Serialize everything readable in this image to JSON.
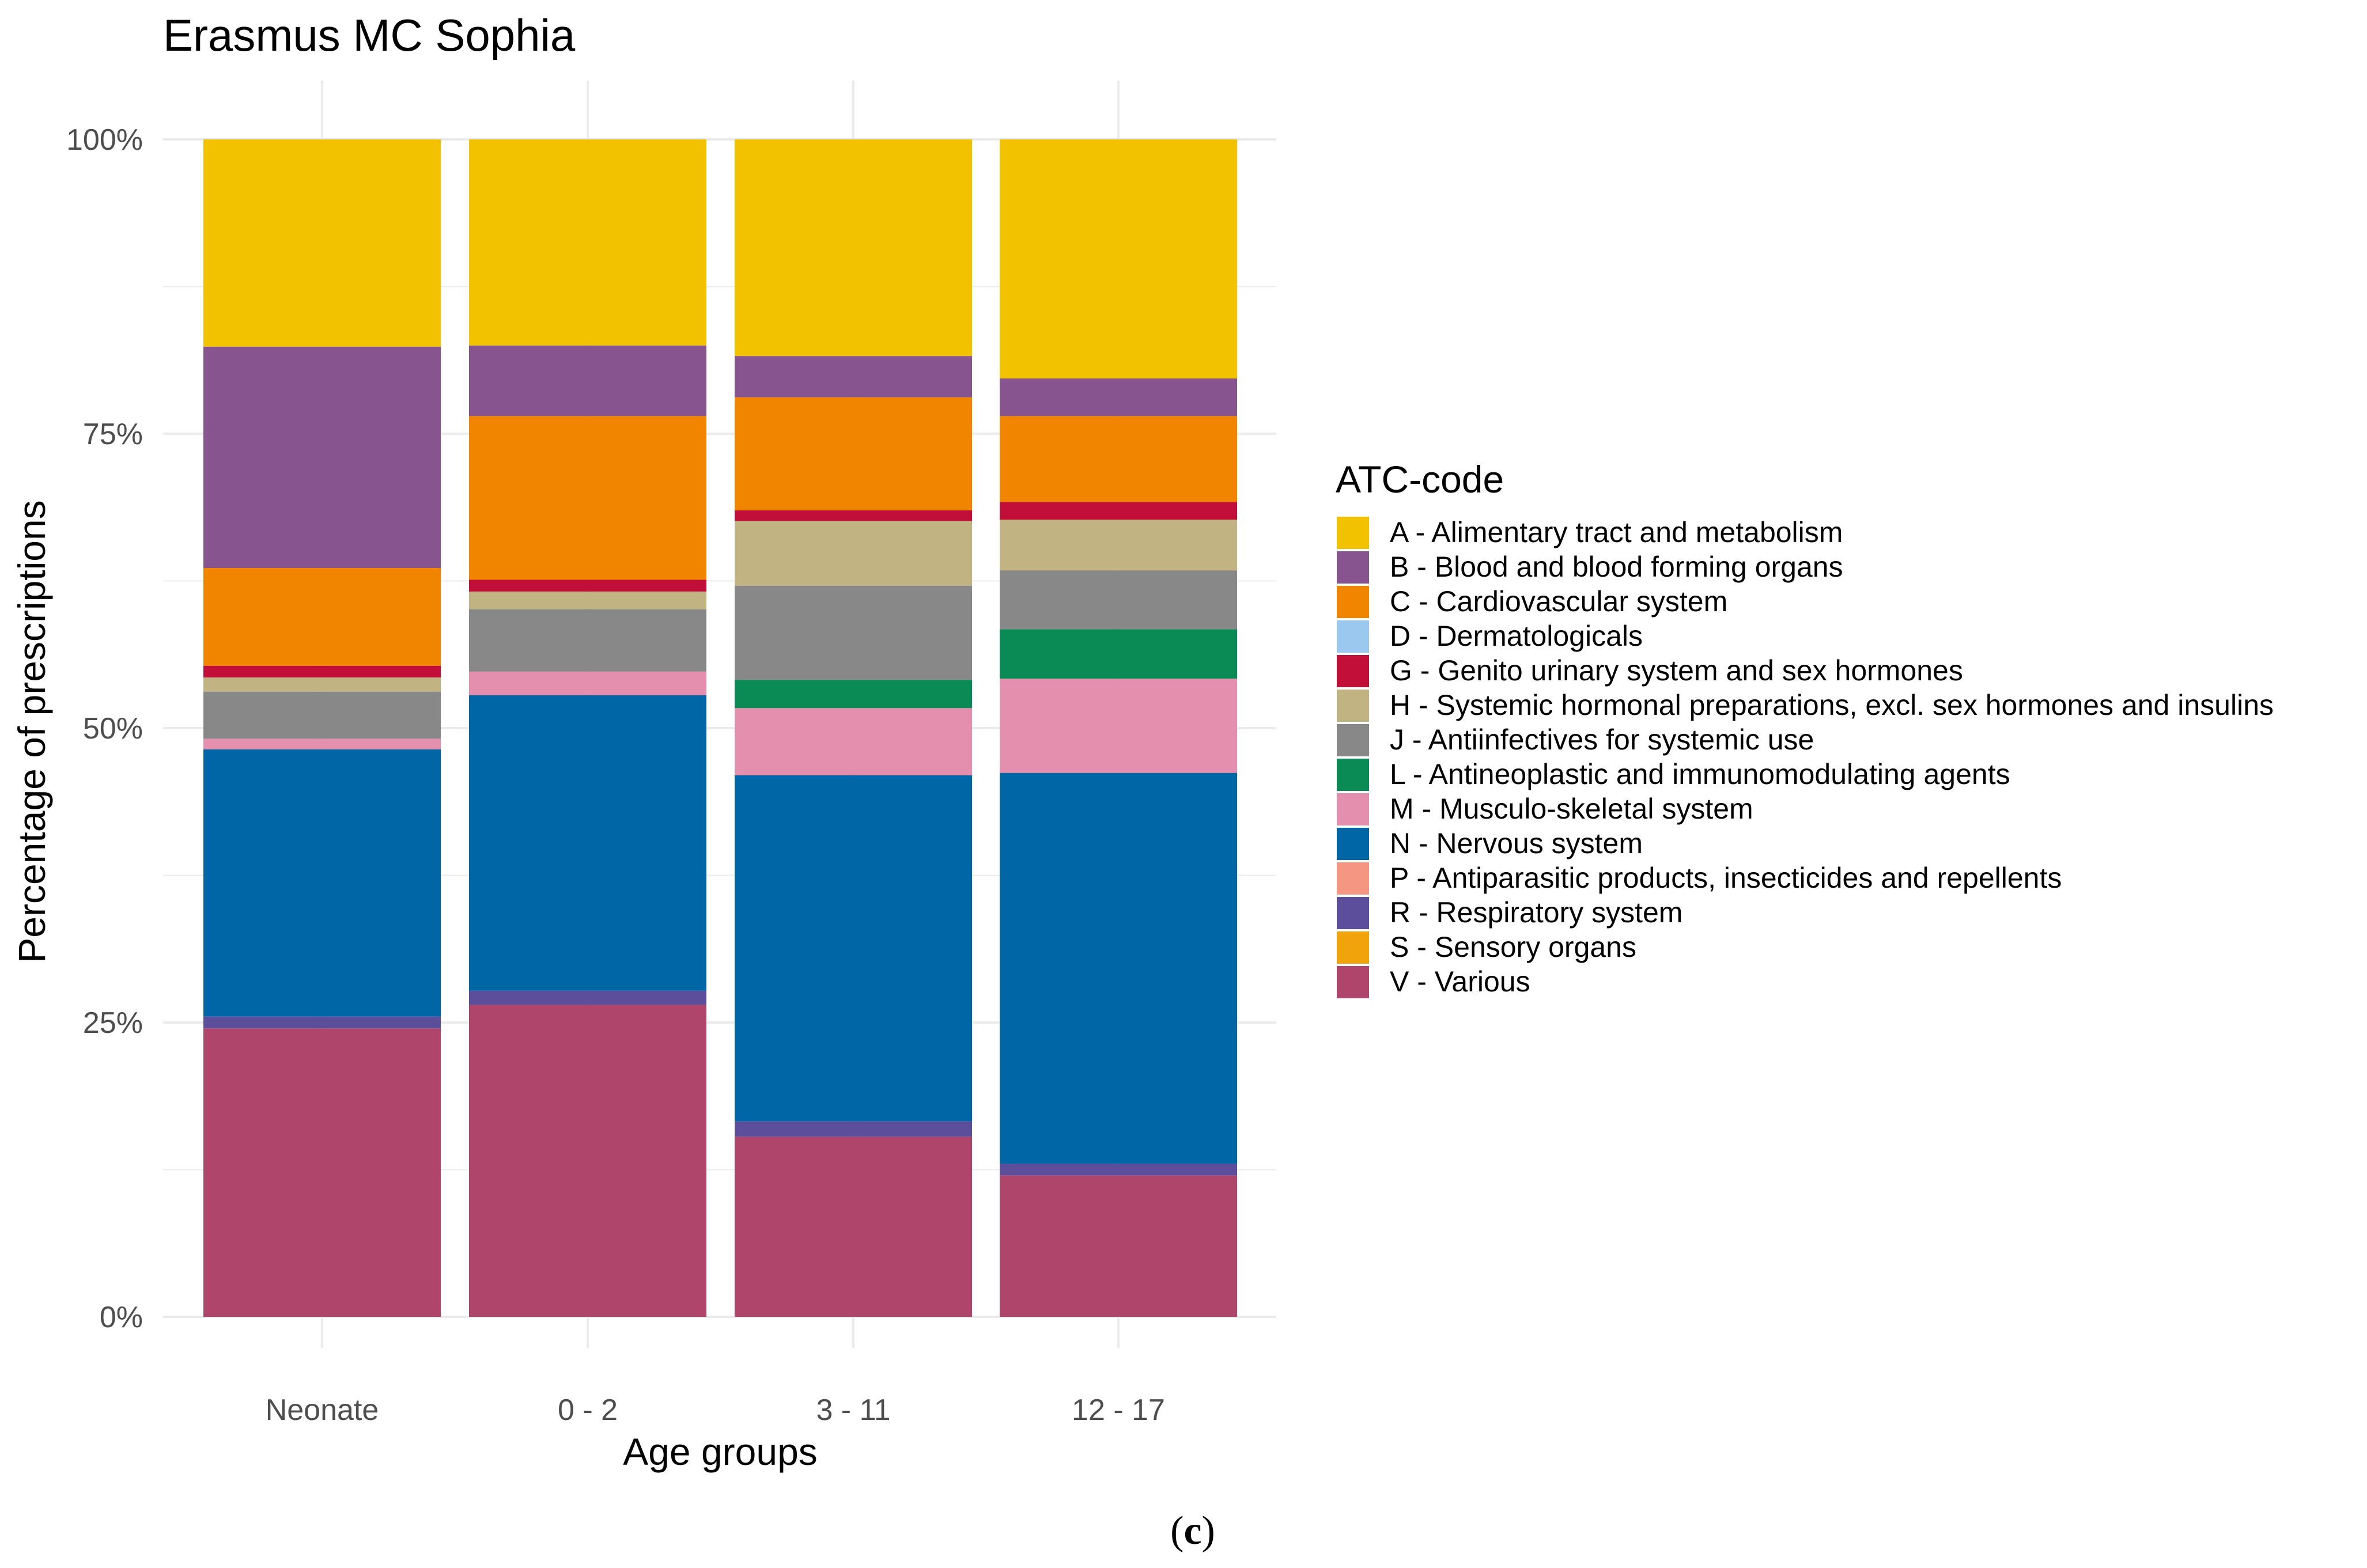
{
  "chart_data": {
    "type": "bar",
    "stacked": true,
    "title": "Erasmus MC Sophia",
    "xlabel": "Age groups",
    "ylabel": "Percentage of prescriptions",
    "ylim": [
      0,
      100
    ],
    "yticks": [
      "0%",
      "25%",
      "50%",
      "75%",
      "100%"
    ],
    "categories": [
      "Neonate",
      "0 - 2",
      "3 - 11",
      "12 - 17"
    ],
    "legend_title": "ATC-code",
    "legend_position": "right",
    "grid": true,
    "series": [
      {
        "name": "V - Various",
        "color": "#b0456b",
        "values": [
          24.5,
          26.5,
          15.3,
          12.0
        ]
      },
      {
        "name": "S - Sensory organs",
        "color": "#f0a30a",
        "values": [
          0.0,
          0.0,
          0.0,
          0.0
        ]
      },
      {
        "name": "R - Respiratory system",
        "color": "#5d4e9c",
        "values": [
          1.0,
          1.2,
          1.3,
          1.0
        ]
      },
      {
        "name": "P - Antiparasitic products, insecticides and repellents",
        "color": "#f49682",
        "values": [
          0.0,
          0.0,
          0.0,
          0.0
        ]
      },
      {
        "name": "N - Nervous system",
        "color": "#0066a6",
        "values": [
          22.7,
          25.1,
          29.4,
          33.2
        ]
      },
      {
        "name": "M - Musculo-skeletal system",
        "color": "#e48fae",
        "values": [
          0.9,
          2.0,
          5.7,
          8.0
        ]
      },
      {
        "name": "L - Antineoplastic and immunomodulating agents",
        "color": "#0a8a55",
        "values": [
          0.0,
          0.0,
          2.4,
          4.2
        ]
      },
      {
        "name": "J - Antiinfectives for systemic use",
        "color": "#888888",
        "values": [
          4.0,
          5.3,
          8.0,
          5.0
        ]
      },
      {
        "name": "H - Systemic hormonal preparations, excl. sex hormones and insulins",
        "color": "#c2b383",
        "values": [
          1.2,
          1.5,
          5.5,
          4.3
        ]
      },
      {
        "name": "G - Genito urinary system and sex hormones",
        "color": "#c10f3a",
        "values": [
          1.0,
          1.0,
          0.9,
          1.5
        ]
      },
      {
        "name": "D - Dermatologicals",
        "color": "#9ac8ee",
        "values": [
          0.0,
          0.0,
          0.0,
          0.0
        ]
      },
      {
        "name": "C - Cardiovascular system",
        "color": "#f28500",
        "values": [
          8.3,
          13.9,
          9.6,
          7.3
        ]
      },
      {
        "name": "B - Blood and blood forming organs",
        "color": "#87548f",
        "values": [
          18.8,
          6.0,
          3.5,
          3.2
        ]
      },
      {
        "name": "A - Alimentary tract and metabolism",
        "color": "#f2c200",
        "values": [
          17.6,
          17.5,
          18.4,
          20.3
        ]
      }
    ]
  },
  "legend_order": [
    "A - Alimentary tract and metabolism",
    "B - Blood and blood forming organs",
    "C - Cardiovascular system",
    "D - Dermatologicals",
    "G - Genito urinary system and sex hormones",
    "H - Systemic hormonal preparations, excl. sex hormones and insulins",
    "J - Antiinfectives for systemic use",
    "L - Antineoplastic and immunomodulating agents",
    "M - Musculo-skeletal system",
    "N - Nervous system",
    "P - Antiparasitic products, insecticides and repellents",
    "R - Respiratory system",
    "S - Sensory organs",
    "V - Various"
  ],
  "caption": {
    "open": "(",
    "letter": "c",
    "close": ")"
  }
}
